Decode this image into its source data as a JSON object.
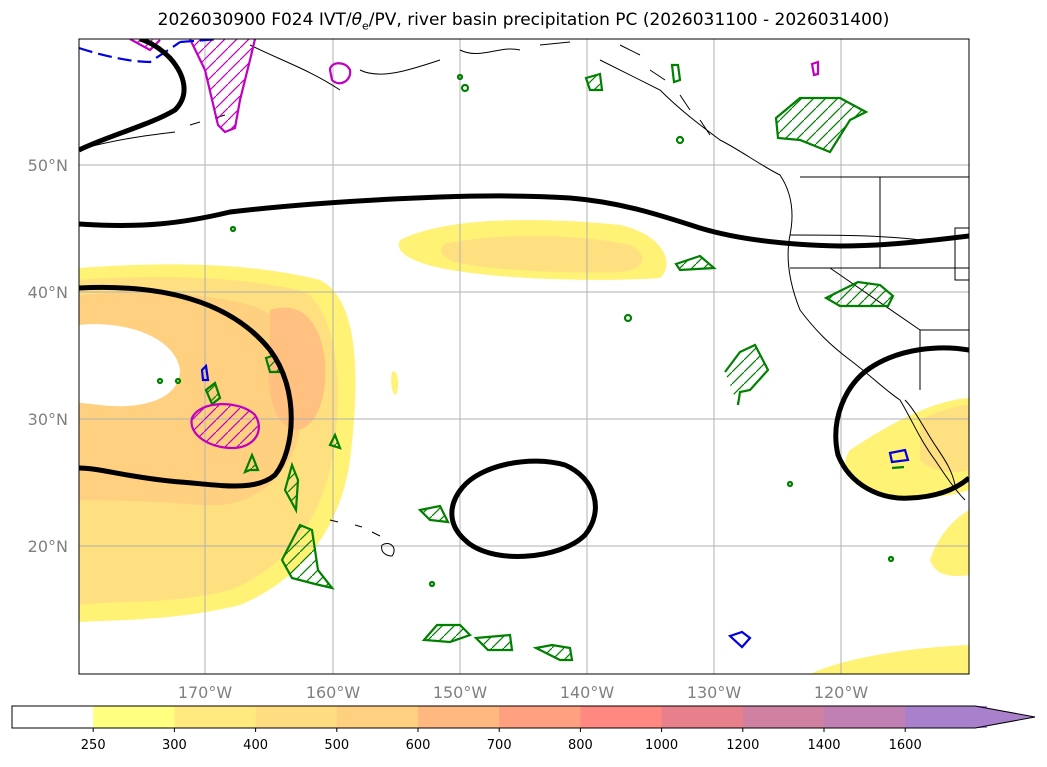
{
  "title": {
    "init": "2026030900 F024 IVT/",
    "theta": "θ",
    "theta_sub": "e",
    "rest": "/PV, river basin precipitation PC (2026031100 - 2026031400)"
  },
  "lat_labels": [
    "50°N",
    "40°N",
    "30°N",
    "20°N"
  ],
  "lon_labels": [
    "170°W",
    "160°W",
    "150°W",
    "140°W",
    "130°W",
    "120°W"
  ],
  "colorbar": {
    "levels": [
      "250",
      "300",
      "400",
      "500",
      "600",
      "700",
      "800",
      "1000",
      "1200",
      "1400",
      "1600"
    ],
    "colors": [
      "#ffffff",
      "#ffff80",
      "#ffea80",
      "#ffdd80",
      "#ffd080",
      "#ffb880",
      "#ffa080",
      "#ff8880",
      "#e8808c",
      "#d080a0",
      "#c080b4",
      "#a880cc"
    ]
  },
  "legend_colors": {
    "pv": "#000000",
    "precip": "#008000",
    "theta_e_magenta": "#c000c0",
    "theta_e_blue": "#0000e0",
    "ivt_light": "#fff275",
    "ivt_mid": "#ffe080",
    "ivt_strong": "#ffc080"
  }
}
